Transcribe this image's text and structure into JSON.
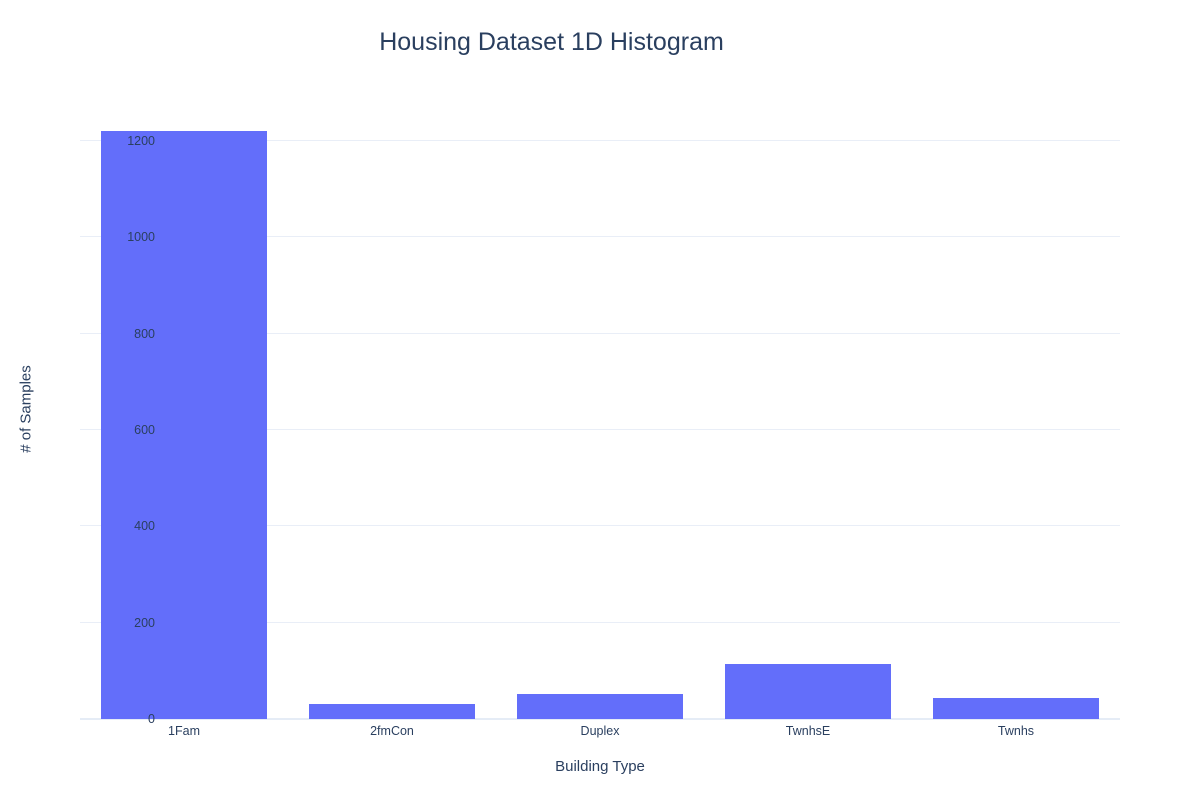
{
  "chart_data": {
    "type": "bar",
    "title": "Housing Dataset 1D Histogram",
    "xlabel": "Building Type",
    "ylabel": "# of Samples",
    "categories": [
      "1Fam",
      "2fmCon",
      "Duplex",
      "TwnhsE",
      "Twnhs"
    ],
    "values": [
      1220,
      31,
      52,
      114,
      43
    ],
    "yticks": [
      0,
      200,
      400,
      600,
      800,
      1000,
      1200
    ],
    "ylim": [
      0,
      1285
    ],
    "grid": true,
    "legend_position": "none",
    "colors": {
      "bar": "#636efa",
      "text": "#2a3f5f",
      "grid": "#e9eef7",
      "zero_line": "#e5ecf6",
      "background": "#ffffff"
    },
    "bar_gap_fraction": 0.2
  }
}
